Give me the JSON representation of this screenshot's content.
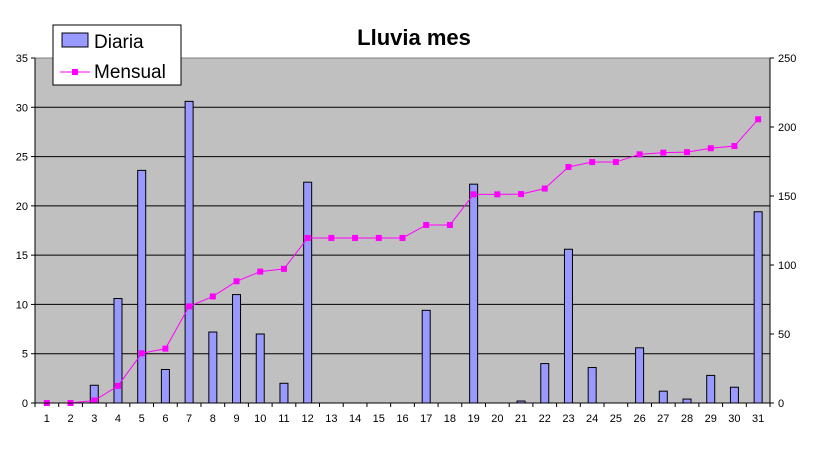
{
  "chart_data": {
    "type": "bar",
    "title": "Lluvia mes",
    "categories": [
      "1",
      "2",
      "3",
      "4",
      "5",
      "6",
      "7",
      "8",
      "9",
      "10",
      "11",
      "12",
      "13",
      "14",
      "15",
      "16",
      "17",
      "18",
      "19",
      "20",
      "21",
      "22",
      "23",
      "24",
      "25",
      "26",
      "27",
      "28",
      "29",
      "30",
      "31"
    ],
    "series": [
      {
        "name": "Diaria",
        "type": "bar",
        "axis": "left",
        "color": "#9999FF",
        "values": [
          0,
          0,
          1.8,
          10.6,
          23.6,
          3.4,
          30.6,
          7.2,
          11.0,
          7.0,
          2.0,
          22.4,
          0,
          0,
          0,
          0,
          9.4,
          0,
          22.2,
          0,
          0.2,
          4.0,
          15.6,
          3.6,
          0,
          5.6,
          1.2,
          0.4,
          2.8,
          1.6,
          19.4
        ]
      },
      {
        "name": "Mensual",
        "type": "line",
        "axis": "right",
        "color": "#FF00FF",
        "values": [
          0,
          0,
          1.8,
          12.4,
          36.0,
          39.4,
          70.0,
          77.2,
          88.2,
          95.2,
          97.2,
          119.6,
          119.6,
          119.6,
          119.6,
          119.6,
          129.0,
          129.0,
          151.2,
          151.2,
          151.4,
          155.4,
          171.0,
          174.6,
          174.6,
          180.2,
          181.4,
          181.8,
          184.6,
          186.2,
          205.6
        ]
      }
    ],
    "y_left": {
      "min": 0,
      "max": 35,
      "step": 5,
      "ticks": [
        "0",
        "5",
        "10",
        "15",
        "20",
        "25",
        "30",
        "35"
      ]
    },
    "y_right": {
      "min": 0,
      "max": 250,
      "step": 50,
      "ticks": [
        "0",
        "50",
        "100",
        "150",
        "200",
        "250"
      ]
    },
    "grid": true,
    "plot_background": "#C0C0C0",
    "legend_position": "top-left"
  }
}
